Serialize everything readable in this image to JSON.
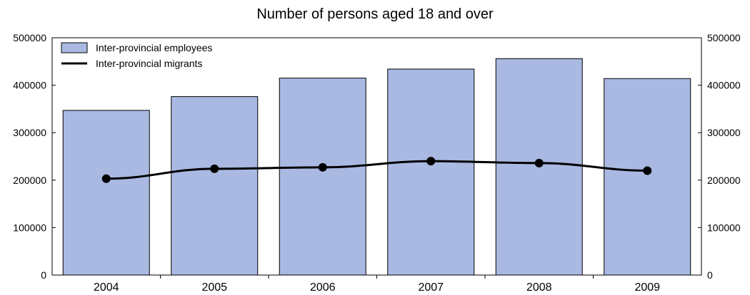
{
  "chart_data": {
    "type": "bar",
    "title": "Number of persons aged 18 and over",
    "categories": [
      "2004",
      "2005",
      "2006",
      "2007",
      "2008",
      "2009"
    ],
    "ylim": [
      0,
      500000
    ],
    "yticks": [
      "0",
      "100000",
      "200000",
      "300000",
      "400000",
      "500000"
    ],
    "legend_position": "top-left",
    "grid": false,
    "series": [
      {
        "name": "Inter-provincial employees",
        "type": "bar",
        "color": "#a9b9e2",
        "values": [
          347000,
          376000,
          415000,
          434000,
          456000,
          414000
        ]
      },
      {
        "name": "Inter-provincial migrants",
        "type": "line",
        "color": "#000000",
        "values": [
          203000,
          224000,
          227000,
          240000,
          236000,
          220000
        ]
      }
    ]
  }
}
